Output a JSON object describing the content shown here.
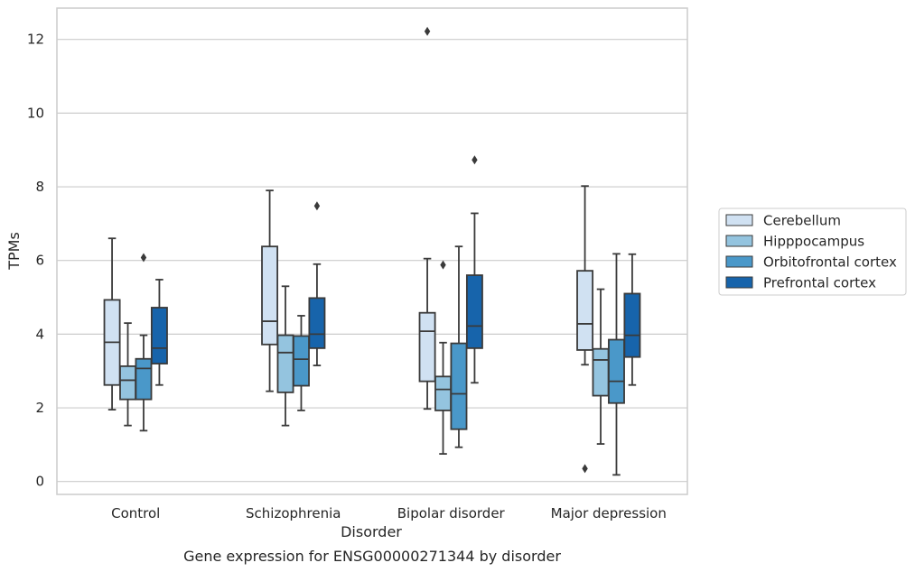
{
  "caption": "Gene expression for ENSG00000271344 by disorder",
  "chart_data": {
    "type": "box",
    "xlabel": "Disorder",
    "ylabel": "TPMs",
    "ylim": [
      -0.35,
      12.85
    ],
    "yticks": [
      0,
      2,
      4,
      6,
      8,
      10,
      12
    ],
    "grid": "horizontal",
    "legend_position": "right",
    "categories": [
      "Control",
      "Schizophrenia",
      "Bipolar disorder",
      "Major depression"
    ],
    "series": [
      {
        "name": "Cerebellum",
        "color": "#d0e1f2",
        "boxes": [
          {
            "min": 1.95,
            "q1": 2.62,
            "median": 3.78,
            "q3": 4.93,
            "max": 6.6,
            "outliers": []
          },
          {
            "min": 2.45,
            "q1": 3.72,
            "median": 4.35,
            "q3": 6.38,
            "max": 7.9,
            "outliers": []
          },
          {
            "min": 1.97,
            "q1": 2.72,
            "median": 4.08,
            "q3": 4.58,
            "max": 6.05,
            "outliers": [
              12.22
            ]
          },
          {
            "min": 3.17,
            "q1": 3.57,
            "median": 4.28,
            "q3": 5.72,
            "max": 8.02,
            "outliers": [
              0.35
            ]
          }
        ]
      },
      {
        "name": "Hipppocampus",
        "color": "#94c4df",
        "boxes": [
          {
            "min": 1.52,
            "q1": 2.23,
            "median": 2.75,
            "q3": 3.13,
            "max": 4.3,
            "outliers": []
          },
          {
            "min": 1.52,
            "q1": 2.42,
            "median": 3.5,
            "q3": 3.97,
            "max": 5.3,
            "outliers": []
          },
          {
            "min": 0.75,
            "q1": 1.93,
            "median": 2.5,
            "q3": 2.85,
            "max": 3.77,
            "outliers": [
              5.88
            ]
          },
          {
            "min": 1.02,
            "q1": 2.33,
            "median": 3.3,
            "q3": 3.6,
            "max": 5.22,
            "outliers": []
          }
        ]
      },
      {
        "name": "Orbitofrontal cortex",
        "color": "#4a98c9",
        "boxes": [
          {
            "min": 1.38,
            "q1": 2.23,
            "median": 3.07,
            "q3": 3.33,
            "max": 3.97,
            "outliers": [
              6.08
            ]
          },
          {
            "min": 1.93,
            "q1": 2.6,
            "median": 3.32,
            "q3": 3.95,
            "max": 4.5,
            "outliers": []
          },
          {
            "min": 0.93,
            "q1": 1.42,
            "median": 2.38,
            "q3": 3.75,
            "max": 6.38,
            "outliers": []
          },
          {
            "min": 0.18,
            "q1": 2.13,
            "median": 2.72,
            "q3": 3.85,
            "max": 6.18,
            "outliers": []
          }
        ]
      },
      {
        "name": "Prefrontal cortex",
        "color": "#1764ab",
        "boxes": [
          {
            "min": 2.62,
            "q1": 3.2,
            "median": 3.62,
            "q3": 4.72,
            "max": 5.48,
            "outliers": []
          },
          {
            "min": 3.15,
            "q1": 3.62,
            "median": 4.0,
            "q3": 4.98,
            "max": 5.9,
            "outliers": [
              7.48
            ]
          },
          {
            "min": 2.68,
            "q1": 3.62,
            "median": 4.22,
            "q3": 5.6,
            "max": 7.28,
            "outliers": [
              8.73
            ]
          },
          {
            "min": 2.62,
            "q1": 3.38,
            "median": 3.97,
            "q3": 5.1,
            "max": 6.17,
            "outliers": []
          }
        ]
      }
    ]
  }
}
